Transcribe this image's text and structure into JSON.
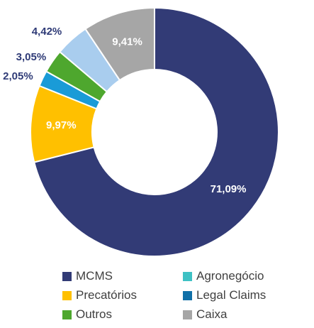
{
  "chart_data": {
    "type": "pie",
    "variant": "donut",
    "title": "",
    "slices": [
      {
        "label": "MCMS",
        "value": 71.09,
        "display": "71,09%",
        "color": "#323B76"
      },
      {
        "label": "Precatórios",
        "value": 9.97,
        "display": "9,97%",
        "color": "#FFC000"
      },
      {
        "label": "Legal Claims",
        "value": 2.05,
        "display": "2,05%",
        "color": "#1A9BD7"
      },
      {
        "label": "Outros",
        "value": 3.05,
        "display": "3,05%",
        "color": "#4EA72E"
      },
      {
        "label": "Agronegócio",
        "value": 4.42,
        "display": "4,42%",
        "color": "#A9CDEE"
      },
      {
        "label": "Caixa",
        "value": 9.41,
        "display": "9,41%",
        "color": "#A6A6A6"
      }
    ],
    "legend": {
      "placement": "bottom",
      "items": [
        {
          "label": "MCMS",
          "color": "#323B76"
        },
        {
          "label": "Agronegócio",
          "color": "#3EC1C4"
        },
        {
          "label": "Precatórios",
          "color": "#FFC000"
        },
        {
          "label": "Legal Claims",
          "color": "#1070A8"
        },
        {
          "label": "Outros",
          "color": "#4EA72E"
        },
        {
          "label": "Caixa",
          "color": "#A6A6A6"
        }
      ]
    }
  }
}
